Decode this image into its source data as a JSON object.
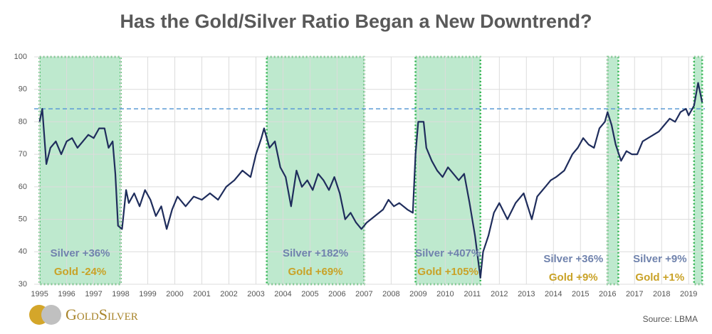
{
  "chart_data": {
    "type": "line",
    "title": "Has the Gold/Silver Ratio Began a New Downtrend?",
    "source": "Source: LBMA",
    "logo": "GoldSilver",
    "xlim": [
      1994.8,
      2019.6
    ],
    "xticks": [
      1995,
      1996,
      1997,
      1998,
      1999,
      2000,
      2001,
      2002,
      2003,
      2004,
      2005,
      2006,
      2007,
      2008,
      2009,
      2010,
      2011,
      2012,
      2013,
      2014,
      2015,
      2016,
      2017,
      2018,
      2019
    ],
    "ylim": [
      30,
      100
    ],
    "yticks": [
      30,
      40,
      50,
      60,
      70,
      80,
      90,
      100
    ],
    "grid": true,
    "reference_line": 84,
    "series": [
      {
        "color": "#1f2d5c",
        "x": [
          1995.0,
          1995.1,
          1995.25,
          1995.4,
          1995.6,
          1995.8,
          1996.0,
          1996.2,
          1996.4,
          1996.6,
          1996.8,
          1997.0,
          1997.2,
          1997.4,
          1997.55,
          1997.7,
          1997.8,
          1997.9,
          1998.05,
          1998.2,
          1998.3,
          1998.5,
          1998.7,
          1998.9,
          1999.1,
          1999.3,
          1999.5,
          1999.7,
          1999.9,
          2000.1,
          2000.4,
          2000.7,
          2001.0,
          2001.3,
          2001.6,
          2001.9,
          2002.2,
          2002.5,
          2002.8,
          2003.0,
          2003.2,
          2003.3,
          2003.5,
          2003.7,
          2003.9,
          2004.1,
          2004.3,
          2004.5,
          2004.7,
          2004.9,
          2005.1,
          2005.3,
          2005.5,
          2005.7,
          2005.9,
          2006.1,
          2006.3,
          2006.5,
          2006.7,
          2006.9,
          2007.1,
          2007.4,
          2007.7,
          2007.9,
          2008.1,
          2008.3,
          2008.6,
          2008.8,
          2008.9,
          2009.0,
          2009.2,
          2009.3,
          2009.5,
          2009.7,
          2009.9,
          2010.1,
          2010.3,
          2010.5,
          2010.7,
          2010.9,
          2011.1,
          2011.3,
          2011.4,
          2011.6,
          2011.8,
          2012.0,
          2012.3,
          2012.6,
          2012.9,
          2013.2,
          2013.4,
          2013.7,
          2013.9,
          2014.1,
          2014.4,
          2014.7,
          2014.9,
          2015.1,
          2015.3,
          2015.5,
          2015.7,
          2015.9,
          2016.0,
          2016.15,
          2016.3,
          2016.5,
          2016.7,
          2016.9,
          2017.1,
          2017.3,
          2017.5,
          2017.7,
          2017.9,
          2018.1,
          2018.3,
          2018.5,
          2018.7,
          2018.9,
          2019.0,
          2019.2,
          2019.35,
          2019.5
        ],
        "values": [
          80,
          84,
          67,
          72,
          74,
          70,
          74,
          75,
          72,
          74,
          76,
          75,
          78,
          78,
          72,
          74,
          64,
          48,
          47,
          59,
          55,
          58,
          54,
          59,
          56,
          51,
          54,
          47,
          53,
          57,
          54,
          57,
          56,
          58,
          56,
          60,
          62,
          65,
          63,
          70,
          75,
          78,
          72,
          74,
          66,
          63,
          54,
          65,
          60,
          62,
          59,
          64,
          62,
          59,
          63,
          58,
          50,
          52,
          49,
          47,
          49,
          51,
          53,
          56,
          54,
          55,
          53,
          52,
          70,
          80,
          80,
          72,
          68,
          65,
          63,
          66,
          64,
          62,
          64,
          55,
          45,
          32,
          40,
          45,
          52,
          55,
          50,
          55,
          58,
          50,
          57,
          60,
          62,
          63,
          65,
          70,
          72,
          75,
          73,
          72,
          78,
          80,
          83,
          79,
          73,
          68,
          71,
          70,
          70,
          74,
          75,
          76,
          77,
          79,
          81,
          80,
          83,
          84,
          82,
          85,
          92,
          86
        ]
      }
    ],
    "regions": [
      {
        "x": [
          1995.0,
          1998.0
        ],
        "silver": "Silver +36%",
        "gold": "Gold -24%"
      },
      {
        "x": [
          2003.4,
          2007.0
        ],
        "silver": "Silver +182%",
        "gold": "Gold +69%"
      },
      {
        "x": [
          2008.9,
          2011.3
        ],
        "silver": "Silver +407%",
        "gold": "Gold +105%"
      },
      {
        "x": [
          2016.0,
          2016.4
        ],
        "silver": "Silver +36%",
        "gold": "Gold +9%"
      },
      {
        "x": [
          2019.2,
          2019.5
        ],
        "silver": "Silver +9%",
        "gold": "Gold +1%"
      }
    ]
  }
}
